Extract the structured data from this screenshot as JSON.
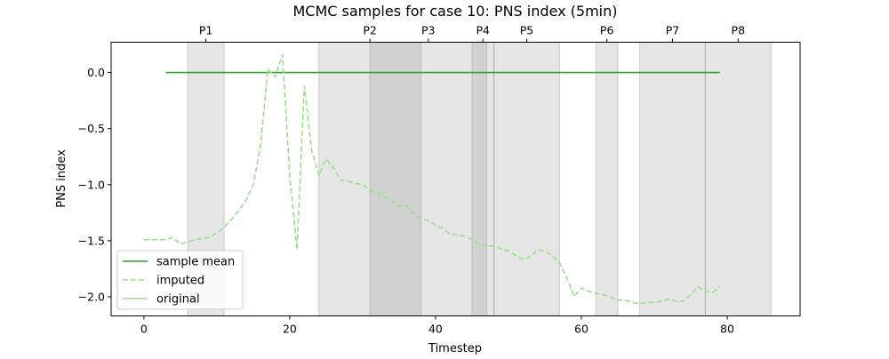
{
  "chart_data": {
    "type": "line",
    "title": "MCMC samples for case 10: PNS index (5min)",
    "xlabel": "Timestep",
    "ylabel": "PNS index",
    "xlim": [
      -4.5,
      90
    ],
    "ylim": [
      -2.17,
      0.27
    ],
    "grid": false,
    "legend_position": "lower-left",
    "x_ticks": [
      {
        "value": 0,
        "label": "0"
      },
      {
        "value": 20,
        "label": "20"
      },
      {
        "value": 40,
        "label": "40"
      },
      {
        "value": 60,
        "label": "60"
      },
      {
        "value": 80,
        "label": "80"
      }
    ],
    "y_ticks": [
      {
        "value": 0.0,
        "label": "0.0"
      },
      {
        "value": -0.5,
        "label": "−0.5"
      },
      {
        "value": -1.0,
        "label": "−1.0"
      },
      {
        "value": -1.5,
        "label": "−1.5"
      },
      {
        "value": -2.0,
        "label": "−2.0"
      }
    ],
    "phases": [
      {
        "label": "P1",
        "start": 6,
        "end": 11
      },
      {
        "label": "P2",
        "start": 24,
        "end": 38
      },
      {
        "label": "P3",
        "start": 31,
        "end": 47
      },
      {
        "label": "P4",
        "start": 45,
        "end": 48
      },
      {
        "label": "P5",
        "start": 48,
        "end": 57
      },
      {
        "label": "P6",
        "start": 62,
        "end": 65
      },
      {
        "label": "P7",
        "start": 68,
        "end": 77
      },
      {
        "label": "P8",
        "start": 77,
        "end": 86
      }
    ],
    "series": [
      {
        "name": "sample mean",
        "color": "#2ca02c",
        "style": "solid",
        "x": [
          3,
          79
        ],
        "y": [
          0.0,
          0.0
        ]
      },
      {
        "name": "imputed",
        "color": "#98df8a",
        "style": "dashed",
        "x": [
          0,
          1,
          2,
          3,
          4,
          5,
          6,
          7,
          8,
          9,
          10,
          11,
          12,
          13,
          14,
          15,
          16,
          17,
          18,
          19,
          20,
          21,
          22,
          23,
          24,
          25,
          26,
          27,
          28,
          29,
          30,
          31,
          32,
          33,
          34,
          35,
          36,
          37,
          38,
          39,
          40,
          41,
          42,
          43,
          44,
          45,
          46,
          47,
          48,
          49,
          50,
          51,
          52,
          53,
          54,
          55,
          56,
          57,
          58,
          59,
          60,
          61,
          62,
          63,
          64,
          65,
          66,
          67,
          68,
          69,
          70,
          71,
          72,
          73,
          74,
          75,
          76,
          77,
          78,
          79
        ],
        "y": [
          -1.49,
          -1.49,
          -1.49,
          -1.49,
          -1.47,
          -1.53,
          -1.51,
          -1.49,
          -1.48,
          -1.47,
          -1.43,
          -1.38,
          -1.31,
          -1.23,
          -1.14,
          -1.0,
          -0.65,
          0.03,
          -0.04,
          0.16,
          -0.92,
          -1.58,
          -0.12,
          -0.69,
          -0.92,
          -0.77,
          -0.85,
          -0.96,
          -0.97,
          -0.99,
          -1.0,
          -1.05,
          -1.08,
          -1.11,
          -1.14,
          -1.19,
          -1.19,
          -1.26,
          -1.3,
          -1.32,
          -1.36,
          -1.39,
          -1.44,
          -1.45,
          -1.46,
          -1.49,
          -1.54,
          -1.54,
          -1.55,
          -1.57,
          -1.59,
          -1.63,
          -1.67,
          -1.64,
          -1.58,
          -1.59,
          -1.63,
          -1.7,
          -1.83,
          -2.0,
          -1.92,
          -1.95,
          -1.97,
          -1.98,
          -2.0,
          -2.03,
          -2.03,
          -2.05,
          -2.06,
          -2.05,
          -2.05,
          -2.04,
          -2.02,
          -2.04,
          -2.04,
          -1.98,
          -1.91,
          -1.95,
          -1.96,
          -1.91
        ]
      },
      {
        "name": "original",
        "color": "#98df8a",
        "style": "solid",
        "x": [],
        "y": []
      }
    ]
  }
}
